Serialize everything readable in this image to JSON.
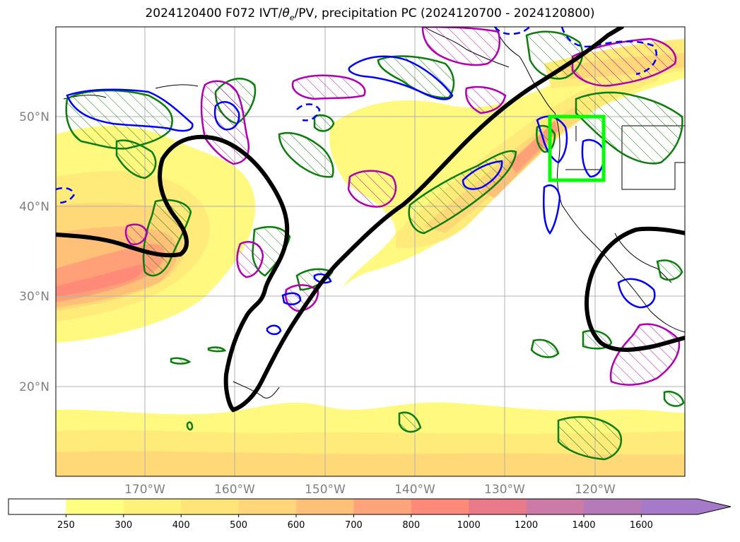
{
  "title": {
    "prefix": "2024120400 F072 IVT/",
    "theta": "θ",
    "theta_sub": "e",
    "suffix": "/PV, precipitation PC (2024120700 - 2024120800)"
  },
  "axes": {
    "lat_labels": [
      "50°N",
      "40°N",
      "30°N",
      "20°N"
    ],
    "lon_labels": [
      "170°W",
      "160°W",
      "150°W",
      "140°W",
      "130°W",
      "120°W"
    ]
  },
  "colorbar": {
    "ticks": [
      "250",
      "300",
      "400",
      "500",
      "600",
      "700",
      "800",
      "1000",
      "1200",
      "1400",
      "1600"
    ],
    "colors": [
      "#ffffff",
      "#ffff80",
      "#fff27a",
      "#ffe477",
      "#ffd77a",
      "#ffc178",
      "#ffa37a",
      "#ff8a7a",
      "#e87a8a",
      "#cc7aa6",
      "#b67ab8",
      "#a57ac8"
    ]
  },
  "map_colors": {
    "ivt_levels": [
      "#fff97f",
      "#ffeb7a",
      "#ffd878",
      "#ffc078",
      "#ffa078",
      "#ff8a78"
    ],
    "theta_contour": "#000000",
    "precip_contour": "#0a7d0a",
    "pv_positive": "#b000b0",
    "pv_negative": "#0000ff",
    "box": "#00ff00"
  }
}
